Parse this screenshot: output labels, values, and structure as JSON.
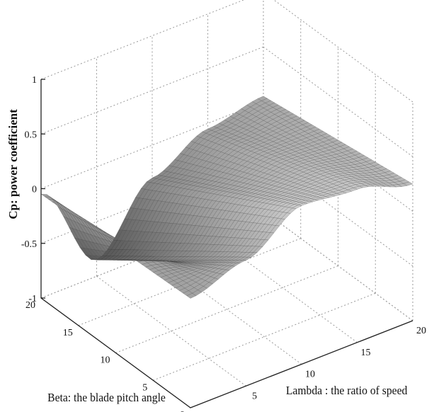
{
  "chart_data": {
    "type": "surface",
    "title": "",
    "zlabel": "Cp: power coefficient",
    "xlabel": "Lambda : the ratio  of speed",
    "ylabel": "Beta: the blade pitch angle",
    "xlim": [
      0,
      20
    ],
    "ylim": [
      0,
      20
    ],
    "zlim": [
      -1,
      1
    ],
    "x_ticks": [
      "0",
      "5",
      "10",
      "15",
      "20"
    ],
    "y_ticks": [
      "0",
      "5",
      "10",
      "15",
      "20"
    ],
    "z_ticks": [
      "-1",
      "-0.5",
      "0",
      "0.5",
      "1"
    ],
    "grid": true,
    "colormap": "gray",
    "mesh_resolution": [
      40,
      40
    ],
    "samples": {
      "beta_0": [
        {
          "lambda": 0,
          "cp": 0
        },
        {
          "lambda": 5,
          "cp": 0.15
        },
        {
          "lambda": 10,
          "cp": 0.45
        },
        {
          "lambda": 15,
          "cp": 0.4
        },
        {
          "lambda": 20,
          "cp": 0.25
        }
      ],
      "beta_20": [
        {
          "lambda": 0,
          "cp": -0.05
        },
        {
          "lambda": 5,
          "cp": -0.85
        },
        {
          "lambda": 10,
          "cp": -0.3
        },
        {
          "lambda": 15,
          "cp": -0.05
        },
        {
          "lambda": 20,
          "cp": 0.05
        }
      ]
    }
  }
}
